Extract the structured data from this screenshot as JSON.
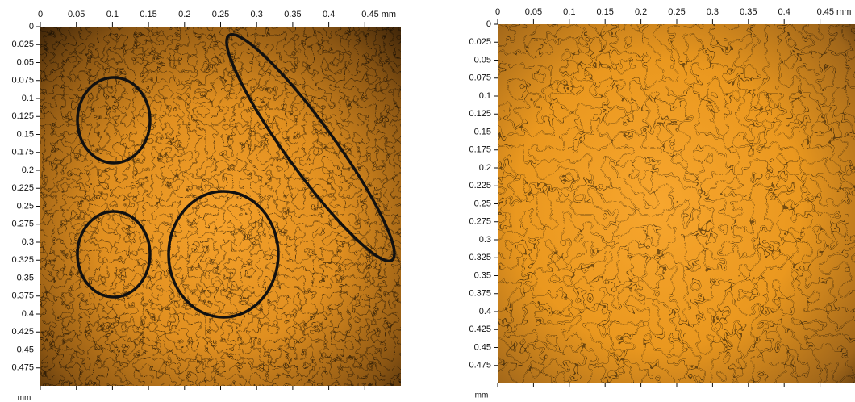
{
  "chart_data": [
    {
      "type": "heatmap",
      "y_label": "mm",
      "xlim": [
        0,
        0.5
      ],
      "ylim": [
        0,
        0.5
      ],
      "xticks": [
        0,
        0.05,
        0.1,
        0.15,
        0.2,
        0.25,
        0.3,
        0.35,
        0.4,
        {
          "value": 0.45,
          "label": "0.45 mm"
        }
      ],
      "yticks": [
        0,
        0.025,
        0.05,
        0.075,
        0.1,
        0.125,
        0.15,
        0.175,
        0.2,
        0.225,
        0.25,
        0.275,
        0.3,
        0.325,
        0.35,
        0.375,
        0.4,
        0.425,
        0.45,
        0.475
      ]
    },
    {
      "type": "heatmap",
      "y_label": "mm",
      "xlim": [
        0,
        0.5
      ],
      "ylim": [
        0,
        0.5
      ],
      "xticks": [
        0,
        0.05,
        0.1,
        0.15,
        0.2,
        0.25,
        0.3,
        0.35,
        0.4,
        {
          "value": 0.45,
          "label": "0.45 mm"
        }
      ],
      "yticks": [
        0,
        0.025,
        0.05,
        0.075,
        0.1,
        0.125,
        0.15,
        0.175,
        0.2,
        0.225,
        0.25,
        0.275,
        0.3,
        0.325,
        0.35,
        0.375,
        0.4,
        0.425,
        0.45,
        0.475
      ]
    }
  ]
}
